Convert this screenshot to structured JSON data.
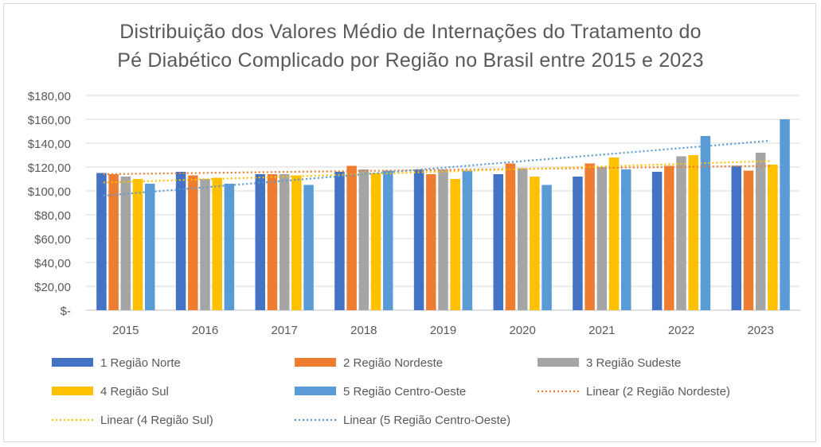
{
  "chart_data": {
    "type": "bar",
    "title_lines": [
      "Distribuição dos Valores Médio de Internações  do Tratamento do",
      "Pé Diabético Complicado por Região no Brasil entre 2015 e 2023"
    ],
    "categories": [
      "2015",
      "2016",
      "2017",
      "2018",
      "2019",
      "2020",
      "2021",
      "2022",
      "2023"
    ],
    "ylim": [
      0,
      180
    ],
    "y_ticks": [
      0,
      20,
      40,
      60,
      80,
      100,
      120,
      140,
      160,
      180
    ],
    "y_tick_labels": [
      "$-",
      "$20,00",
      "$40,00",
      "$60,00",
      "$80,00",
      "$100,00",
      "$120,00",
      "$140,00",
      "$160,00",
      "$180,00"
    ],
    "grid": "horizontal",
    "legend_position": "bottom",
    "series": [
      {
        "name": "1 Região Norte",
        "color": "#4472C4",
        "values": [
          115,
          116,
          114,
          116,
          118,
          114,
          112,
          116,
          121
        ]
      },
      {
        "name": "2 Região Nordeste",
        "color": "#ED7D31",
        "values": [
          114,
          113,
          114,
          121,
          114,
          123,
          123,
          121,
          117
        ]
      },
      {
        "name": "3 Região Sudeste",
        "color": "#A5A5A5",
        "values": [
          112,
          110,
          114,
          118,
          118,
          119,
          120,
          129,
          132
        ]
      },
      {
        "name": "4 Região Sul",
        "color": "#FFC000",
        "values": [
          110,
          111,
          113,
          115,
          110,
          112,
          128,
          130,
          122
        ]
      },
      {
        "name": "5 Região Centro-Oeste",
        "color": "#5B9BD5",
        "values": [
          106,
          106,
          105,
          117,
          117,
          105,
          118,
          146,
          160
        ]
      }
    ],
    "trendlines": [
      {
        "name": "Linear (2 Região Nordeste)",
        "series": "2 Região Nordeste",
        "color": "#ED7D31",
        "from": 114,
        "to": 121
      },
      {
        "name": "Linear (4 Região Sul)",
        "series": "4 Região Sul",
        "color": "#FFC000",
        "from": 107,
        "to": 125
      },
      {
        "name": "Linear (5 Região Centro-Oeste)",
        "series": "5 Região Centro-Oeste",
        "color": "#5B9BD5",
        "from": 96,
        "to": 142
      }
    ],
    "legend": [
      {
        "label": "1 Região Norte",
        "kind": "bar",
        "color": "#4472C4"
      },
      {
        "label": "2 Região Nordeste",
        "kind": "bar",
        "color": "#ED7D31"
      },
      {
        "label": "3 Região Sudeste",
        "kind": "bar",
        "color": "#A5A5A5"
      },
      {
        "label": "4 Região Sul",
        "kind": "bar",
        "color": "#FFC000"
      },
      {
        "label": "5 Região Centro-Oeste",
        "kind": "bar",
        "color": "#5B9BD5"
      },
      {
        "label": "Linear (2 Região Nordeste)",
        "kind": "line",
        "color": "#ED7D31"
      },
      {
        "label": "Linear (4 Região Sul)",
        "kind": "line",
        "color": "#FFC000"
      },
      {
        "label": "Linear (5 Região Centro-Oeste)",
        "kind": "line",
        "color": "#5B9BD5"
      }
    ]
  }
}
